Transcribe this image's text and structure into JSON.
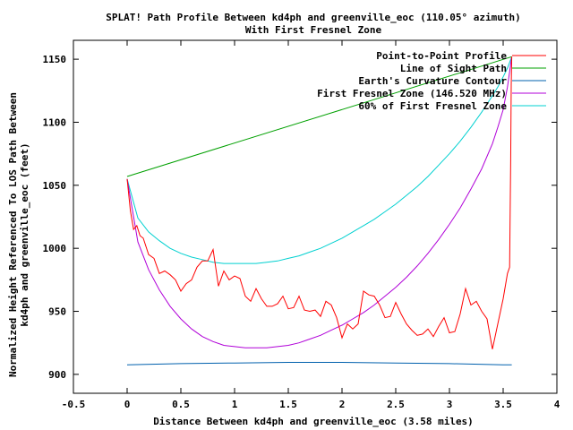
{
  "chart_data": {
    "type": "line",
    "title_line1": "SPLAT! Path Profile Between kd4ph and greenville_eoc (110.05° azimuth)",
    "title_line2": "With First Fresnel Zone",
    "xlabel": "Distance Between kd4ph and greenville_eoc (3.58 miles)",
    "ylabel_line1": "Normalized Height Referenced To LOS Path Between",
    "ylabel_line2": "kd4ph and greenville_eoc (feet)",
    "xlim": [
      -0.5,
      4
    ],
    "ylim": [
      885,
      1165
    ],
    "x_ticks": [
      -0.5,
      0,
      0.5,
      1,
      1.5,
      2,
      2.5,
      3,
      3.5,
      4
    ],
    "x_tick_labels": [
      "-0.5",
      "0",
      "0.5",
      "1",
      "1.5",
      "2",
      "2.5",
      "3",
      "3.5",
      "4"
    ],
    "y_ticks": [
      900,
      950,
      1000,
      1050,
      1100,
      1150
    ],
    "y_tick_labels": [
      "900",
      "950",
      "1000",
      "1050",
      "1100",
      "1150"
    ],
    "grid": false,
    "legend_position": "top-right",
    "series": [
      {
        "name": "Point-to-Point Profile",
        "color": "#ff0000",
        "x": [
          0,
          0.03,
          0.06,
          0.09,
          0.12,
          0.15,
          0.2,
          0.25,
          0.3,
          0.35,
          0.4,
          0.45,
          0.5,
          0.55,
          0.6,
          0.65,
          0.7,
          0.75,
          0.8,
          0.85,
          0.9,
          0.95,
          1.0,
          1.05,
          1.1,
          1.15,
          1.2,
          1.25,
          1.3,
          1.35,
          1.4,
          1.45,
          1.5,
          1.55,
          1.6,
          1.65,
          1.7,
          1.75,
          1.8,
          1.85,
          1.9,
          1.95,
          2.0,
          2.05,
          2.1,
          2.15,
          2.2,
          2.25,
          2.3,
          2.35,
          2.4,
          2.45,
          2.5,
          2.55,
          2.6,
          2.65,
          2.7,
          2.75,
          2.8,
          2.85,
          2.9,
          2.95,
          3.0,
          3.05,
          3.1,
          3.15,
          3.2,
          3.25,
          3.3,
          3.35,
          3.4,
          3.45,
          3.5,
          3.54,
          3.56,
          3.57,
          3.575,
          3.58
        ],
        "y": [
          1055,
          1030,
          1015,
          1018,
          1010,
          1008,
          995,
          992,
          980,
          982,
          979,
          975,
          966,
          972,
          975,
          985,
          990,
          990,
          999,
          970,
          982,
          975,
          978,
          976,
          962,
          958,
          968,
          960,
          954,
          954,
          956,
          962,
          952,
          953,
          962,
          951,
          950,
          951,
          946,
          958,
          955,
          945,
          929,
          940,
          936,
          940,
          966,
          963,
          962,
          955,
          945,
          946,
          957,
          948,
          940,
          935,
          931,
          932,
          936,
          930,
          938,
          945,
          933,
          934,
          948,
          968,
          955,
          958,
          950,
          944,
          920,
          940,
          960,
          980,
          985,
          1070,
          1130,
          1152
        ]
      },
      {
        "name": "Line of Sight Path",
        "color": "#00a000",
        "x": [
          0,
          3.58
        ],
        "y": [
          1057,
          1152
        ]
      },
      {
        "name": "Earth's Curvature Contour",
        "color": "#0060ad",
        "x": [
          0,
          0.5,
          1.0,
          1.5,
          2.0,
          2.5,
          3.0,
          3.5,
          3.58
        ],
        "y": [
          907.5,
          908.5,
          909,
          909.5,
          909.5,
          909,
          908.5,
          907.5,
          907.5
        ]
      },
      {
        "name": "First Fresnel Zone (146.520 MHz)",
        "color": "#b000d8",
        "x": [
          0,
          0.1,
          0.2,
          0.3,
          0.4,
          0.5,
          0.6,
          0.7,
          0.8,
          0.9,
          1.0,
          1.1,
          1.2,
          1.3,
          1.4,
          1.5,
          1.6,
          1.7,
          1.8,
          1.9,
          2.0,
          2.1,
          2.2,
          2.3,
          2.4,
          2.5,
          2.6,
          2.7,
          2.8,
          2.9,
          3.0,
          3.1,
          3.2,
          3.3,
          3.4,
          3.45,
          3.5,
          3.54,
          3.58
        ],
        "y": [
          1055,
          1005,
          983,
          967,
          954,
          944,
          936,
          930,
          926,
          923,
          922,
          921,
          921,
          921,
          922,
          923,
          925,
          928,
          931,
          935,
          939,
          944,
          949,
          955,
          962,
          969,
          977,
          986,
          996,
          1007,
          1019,
          1032,
          1047,
          1063,
          1083,
          1096,
          1110,
          1128,
          1152
        ]
      },
      {
        "name": "60% of First Fresnel Zone",
        "color": "#00d0d0",
        "x": [
          0,
          0.1,
          0.2,
          0.3,
          0.4,
          0.5,
          0.6,
          0.7,
          0.8,
          0.9,
          1.0,
          1.1,
          1.2,
          1.3,
          1.4,
          1.5,
          1.6,
          1.7,
          1.8,
          1.9,
          2.0,
          2.1,
          2.2,
          2.3,
          2.4,
          2.5,
          2.6,
          2.7,
          2.8,
          2.9,
          3.0,
          3.1,
          3.2,
          3.3,
          3.4,
          3.45,
          3.5,
          3.54,
          3.58
        ],
        "y": [
          1055,
          1024,
          1013,
          1006,
          1000,
          996,
          993,
          991,
          989,
          988,
          988,
          988,
          988,
          989,
          990,
          992,
          994,
          997,
          1000,
          1004,
          1008,
          1013,
          1018,
          1023,
          1029,
          1035,
          1042,
          1049,
          1057,
          1066,
          1075,
          1085,
          1096,
          1108,
          1121,
          1128,
          1136,
          1143,
          1152
        ]
      }
    ]
  }
}
